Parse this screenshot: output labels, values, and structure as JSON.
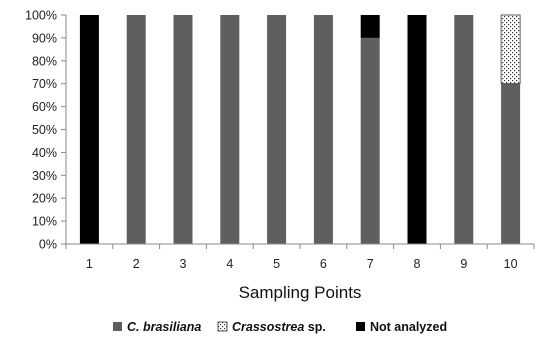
{
  "chart_data": {
    "type": "bar",
    "stacked": true,
    "categories": [
      "1",
      "2",
      "3",
      "4",
      "5",
      "6",
      "7",
      "8",
      "9",
      "10"
    ],
    "series": [
      {
        "name": "C. brasiliana",
        "values": [
          0,
          100,
          100,
          100,
          100,
          100,
          90,
          0,
          100,
          70
        ],
        "color": "#5f5f5f",
        "pattern": "solid"
      },
      {
        "name": "Crassostrea sp.",
        "values": [
          0,
          0,
          0,
          0,
          0,
          0,
          0,
          0,
          0,
          30
        ],
        "color": "#ffffff",
        "pattern": "dotted"
      },
      {
        "name": "Not analyzed",
        "values": [
          100,
          0,
          0,
          0,
          0,
          0,
          10,
          100,
          0,
          0
        ],
        "color": "#000000",
        "pattern": "solid"
      }
    ],
    "xlabel": "Sampling Points",
    "ylabel": "",
    "ylim": [
      0,
      100
    ],
    "yticks": [
      "0%",
      "10%",
      "20%",
      "30%",
      "40%",
      "50%",
      "60%",
      "70%",
      "80%",
      "90%",
      "100%"
    ],
    "grid": false,
    "legend_position": "bottom"
  },
  "legend": {
    "items": [
      {
        "italic": "C. brasiliana",
        "rest": ""
      },
      {
        "italic": "Crassostrea",
        "rest": " sp."
      },
      {
        "italic": "",
        "rest": "Not analyzed"
      }
    ]
  }
}
